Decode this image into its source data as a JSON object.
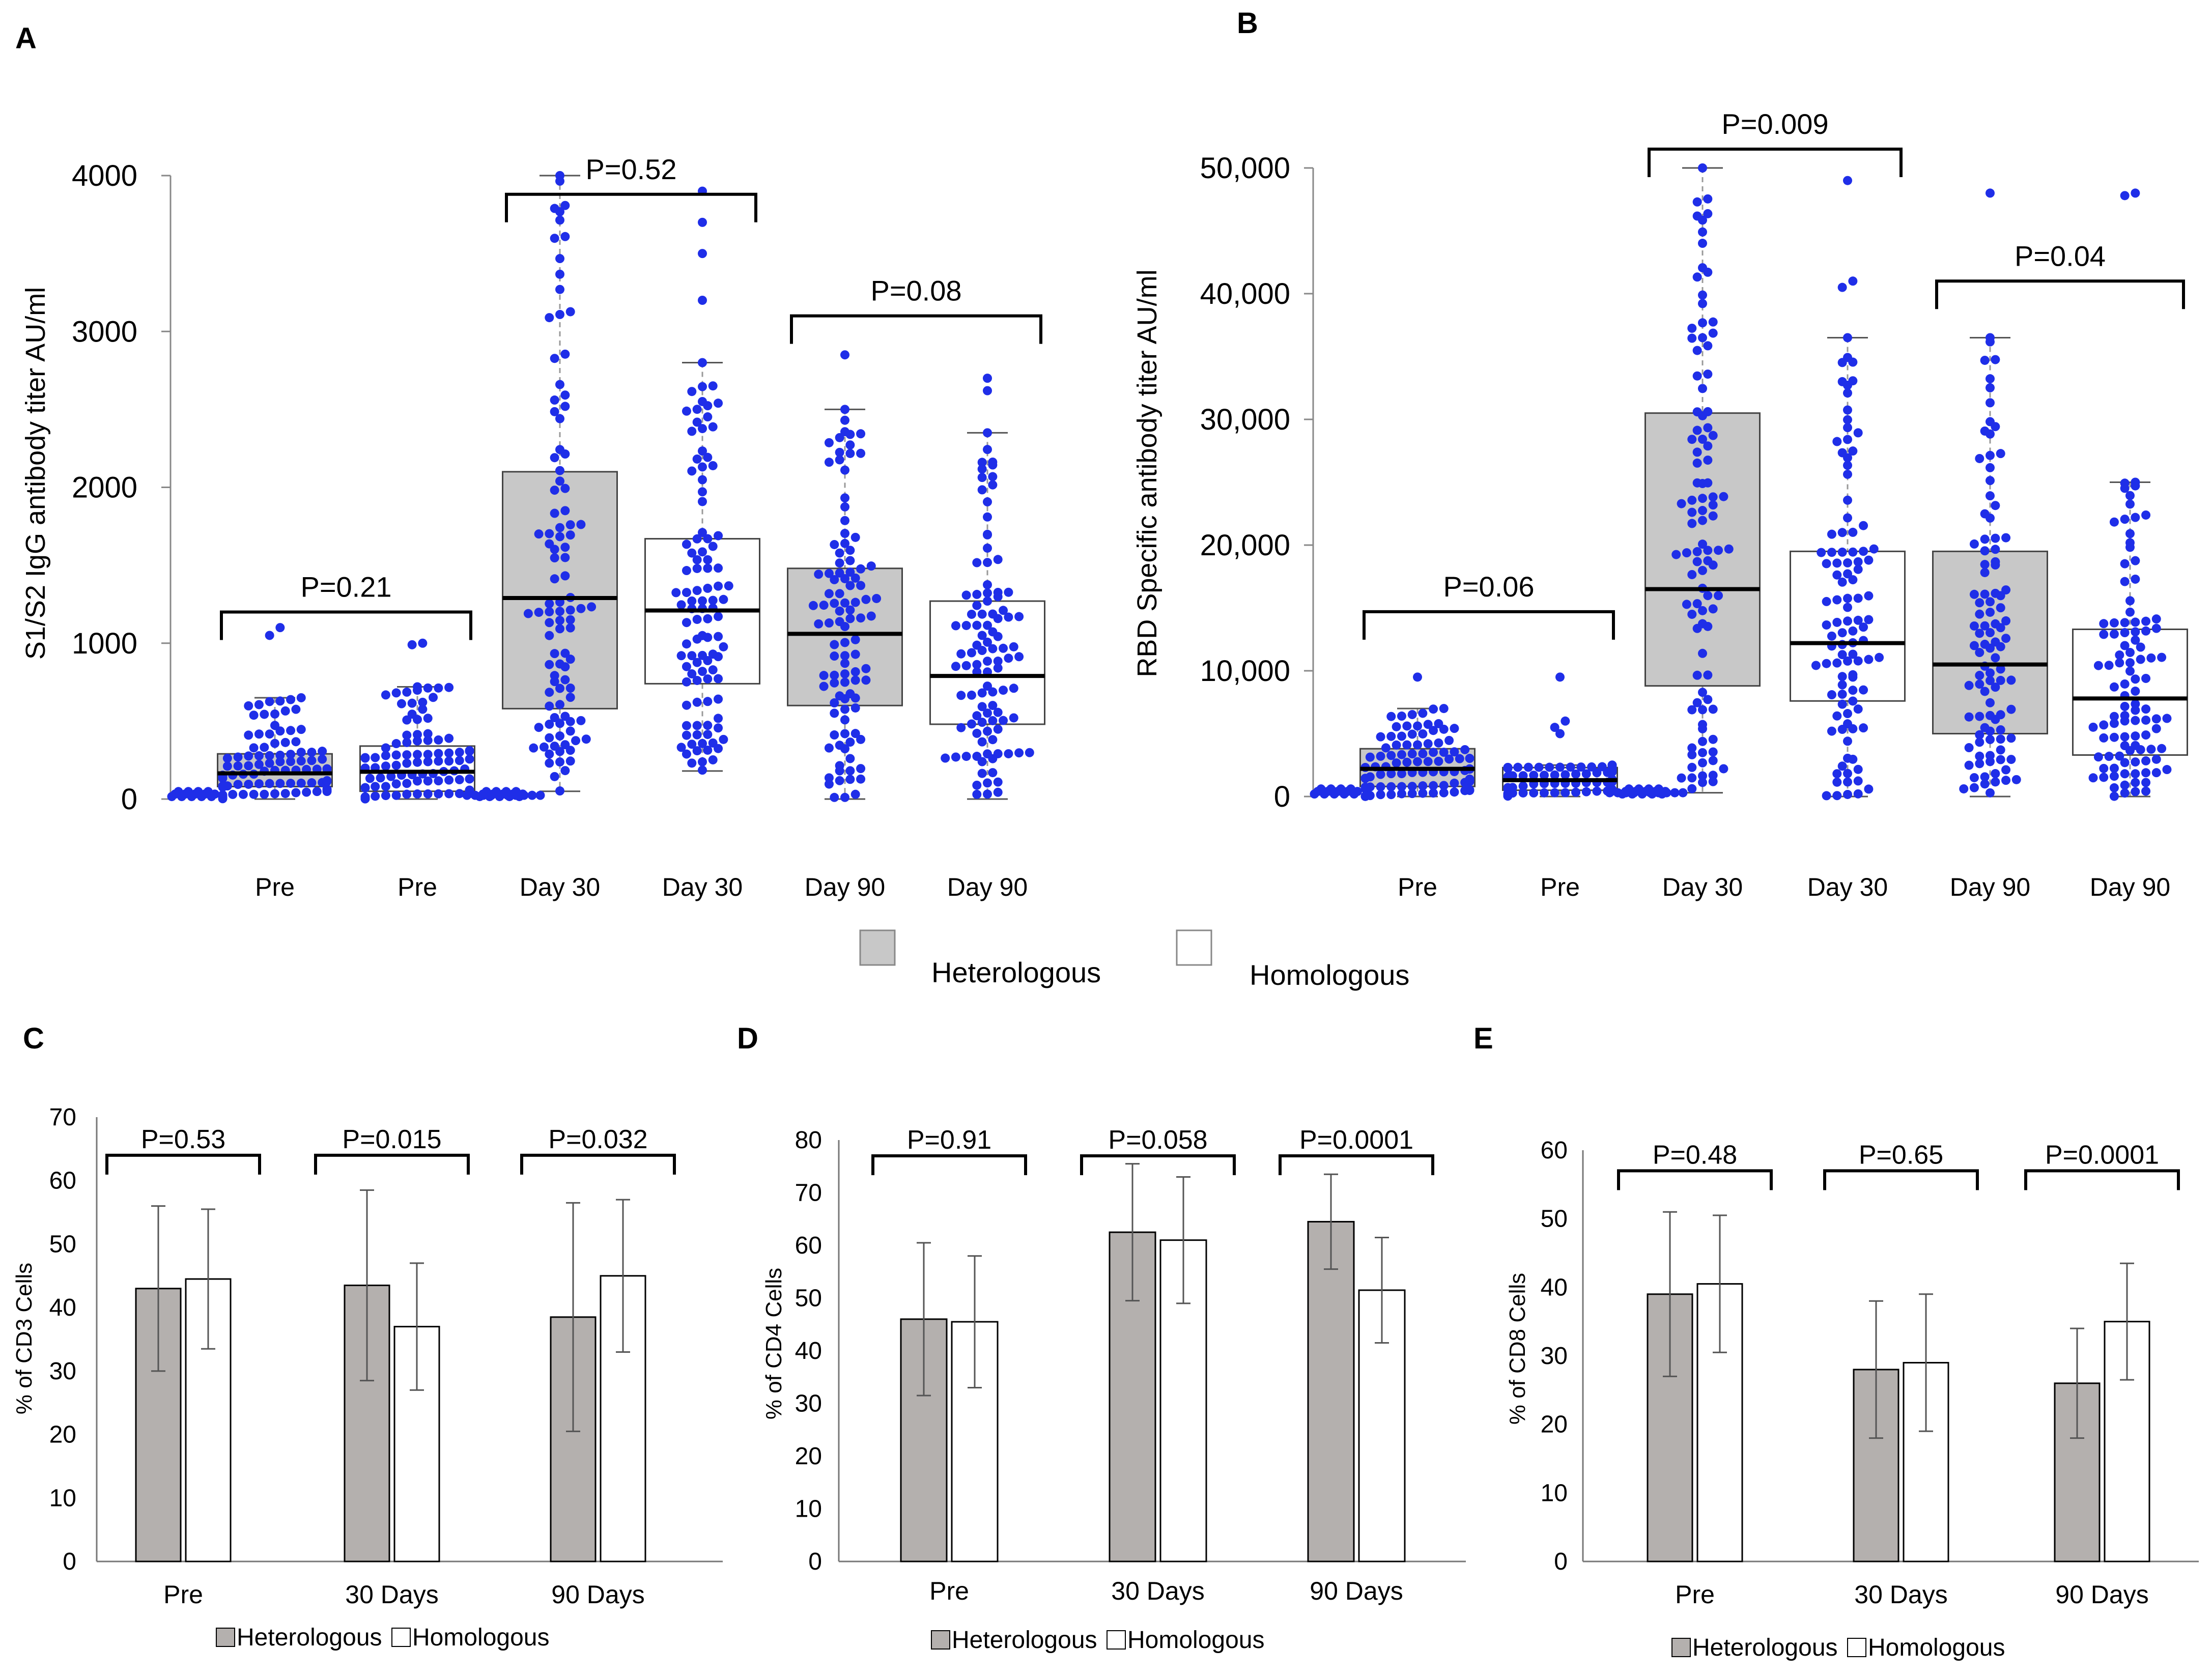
{
  "legend": {
    "heterologous": "Heterologous",
    "homologous": "Homologous",
    "heterologous_color": "#c8c8c8",
    "homologous_color": "#ffffff",
    "dot_color": "#1f2ee8"
  },
  "chart_data": [
    {
      "id": "A",
      "type": "box+swarm",
      "letter": "A",
      "ylabel": "S1/S2 IgG antibody titer AU/ml",
      "ylim": [
        0,
        4000
      ],
      "yticks": [
        0,
        1000,
        2000,
        3000,
        4000
      ],
      "ytick_labels": [
        "0",
        "1000",
        "2000",
        "3000",
        "4000"
      ],
      "categories": [
        "Pre",
        "Pre",
        "Day 30",
        "Day 30",
        "Day 90",
        "Day 90"
      ],
      "groups": [
        "Heterologous",
        "Homologous",
        "Heterologous",
        "Homologous",
        "Heterologous",
        "Homologous"
      ],
      "boxes": [
        {
          "whisker_low": 0,
          "q1": 80,
          "median": 165,
          "q3": 290,
          "whisker_high": 650,
          "outliers": [
            1100,
            1050
          ],
          "n": 100
        },
        {
          "whisker_low": 0,
          "q1": 50,
          "median": 175,
          "q3": 340,
          "whisker_high": 720,
          "outliers": [
            1000,
            990
          ],
          "n": 100
        },
        {
          "whisker_low": 50,
          "q1": 580,
          "median": 1290,
          "q3": 2100,
          "whisker_high": 4000,
          "outliers": [],
          "n": 100
        },
        {
          "whisker_low": 180,
          "q1": 740,
          "median": 1210,
          "q3": 1670,
          "whisker_high": 2800,
          "outliers": [
            3900,
            3700,
            3500,
            3200
          ],
          "n": 100
        },
        {
          "whisker_low": 0,
          "q1": 600,
          "median": 1060,
          "q3": 1480,
          "whisker_high": 2500,
          "outliers": [
            2850
          ],
          "n": 100
        },
        {
          "whisker_low": 0,
          "q1": 480,
          "median": 790,
          "q3": 1270,
          "whisker_high": 2350,
          "outliers": [
            2700,
            2620
          ],
          "n": 100
        }
      ],
      "brackets": [
        {
          "from": 0,
          "to": 1,
          "label": "P=0.21",
          "level": 1200
        },
        {
          "from": 2,
          "to": 3,
          "label": "P=0.52",
          "level": 3880
        },
        {
          "from": 4,
          "to": 5,
          "label": "P=0.08",
          "level": 3100
        }
      ]
    },
    {
      "id": "B",
      "type": "box+swarm",
      "letter": "B",
      "ylabel": "RBD Specific antibody titer AU/ml",
      "ylim": [
        0,
        50000
      ],
      "yticks": [
        0,
        10000,
        20000,
        30000,
        40000,
        50000
      ],
      "ytick_labels": [
        "0",
        "10,000",
        "20,000",
        "30,000",
        "40,000",
        "50,000"
      ],
      "categories": [
        "Pre",
        "Pre",
        "Day 30",
        "Day 30",
        "Day 90",
        "Day 90"
      ],
      "groups": [
        "Heterologous",
        "Homologous",
        "Heterologous",
        "Homologous",
        "Heterologous",
        "Homologous"
      ],
      "boxes": [
        {
          "whisker_low": 0,
          "q1": 800,
          "median": 2200,
          "q3": 3800,
          "whisker_high": 7000,
          "outliers": [
            9500
          ],
          "n": 100
        },
        {
          "whisker_low": 0,
          "q1": 500,
          "median": 1300,
          "q3": 2300,
          "whisker_high": 2500,
          "outliers": [
            9500,
            6000,
            5500,
            5000
          ],
          "n": 100
        },
        {
          "whisker_low": 300,
          "q1": 8800,
          "median": 16500,
          "q3": 30500,
          "whisker_high": 50000,
          "outliers": [],
          "n": 100
        },
        {
          "whisker_low": 0,
          "q1": 7600,
          "median": 12200,
          "q3": 19500,
          "whisker_high": 36500,
          "outliers": [
            49000,
            41000,
            40500,
            33000
          ],
          "n": 100
        },
        {
          "whisker_low": 0,
          "q1": 5000,
          "median": 10500,
          "q3": 19500,
          "whisker_high": 36500,
          "outliers": [
            48000
          ],
          "n": 100
        },
        {
          "whisker_low": 0,
          "q1": 3300,
          "median": 7800,
          "q3": 13300,
          "whisker_high": 25000,
          "outliers": [
            48000,
            47800
          ],
          "n": 100
        }
      ],
      "brackets": [
        {
          "from": 0,
          "to": 1,
          "label": "P=0.06",
          "level": 14700
        },
        {
          "from": 2,
          "to": 3,
          "label": "P=0.009",
          "level": 51500
        },
        {
          "from": 4,
          "to": 5,
          "label": "P=0.04",
          "level": 41000
        }
      ]
    },
    {
      "id": "C",
      "type": "bar",
      "letter": "C",
      "ylabel": "% of CD3 Cells",
      "ylim": [
        0,
        70
      ],
      "yticks": [
        0,
        10,
        20,
        30,
        40,
        50,
        60,
        70
      ],
      "categories": [
        "Pre",
        "30 Days",
        "90 Days"
      ],
      "series": [
        {
          "name": "Heterologous",
          "values": [
            43,
            43.5,
            38.5
          ],
          "errors": [
            13,
            15,
            18
          ]
        },
        {
          "name": "Homologous",
          "values": [
            44.5,
            37,
            45
          ],
          "errors": [
            11,
            10,
            12
          ]
        }
      ],
      "pvalues": [
        "P=0.53",
        "P=0.015",
        "P=0.032"
      ],
      "bracket_level": 64
    },
    {
      "id": "D",
      "type": "bar",
      "letter": "D",
      "ylabel": "% of CD4 Cells",
      "ylim": [
        0,
        80
      ],
      "yticks": [
        0,
        10,
        20,
        30,
        40,
        50,
        60,
        70,
        80
      ],
      "categories": [
        "Pre",
        "30 Days",
        "90 Days"
      ],
      "series": [
        {
          "name": "Heterologous",
          "values": [
            46,
            62.5,
            64.5
          ],
          "errors": [
            14.5,
            13,
            9
          ]
        },
        {
          "name": "Homologous",
          "values": [
            45.5,
            61,
            51.5
          ],
          "errors": [
            12.5,
            12,
            10
          ]
        }
      ],
      "pvalues": [
        "P=0.91",
        "P=0.058",
        "P=0.0001"
      ],
      "bracket_level": 77
    },
    {
      "id": "E",
      "type": "bar",
      "letter": "E",
      "ylabel": "% of CD8 Cells",
      "ylim": [
        0,
        60
      ],
      "yticks": [
        0,
        10,
        20,
        30,
        40,
        50,
        60
      ],
      "categories": [
        "Pre",
        "30 Days",
        "90 Days"
      ],
      "series": [
        {
          "name": "Heterologous",
          "values": [
            39,
            28,
            26
          ],
          "errors": [
            12,
            10,
            8
          ]
        },
        {
          "name": "Homologous",
          "values": [
            40.5,
            29,
            35
          ],
          "errors": [
            10,
            10,
            8.5
          ]
        }
      ],
      "pvalues": [
        "P=0.48",
        "P=0.65",
        "P=0.0001"
      ],
      "bracket_level": 57
    }
  ]
}
